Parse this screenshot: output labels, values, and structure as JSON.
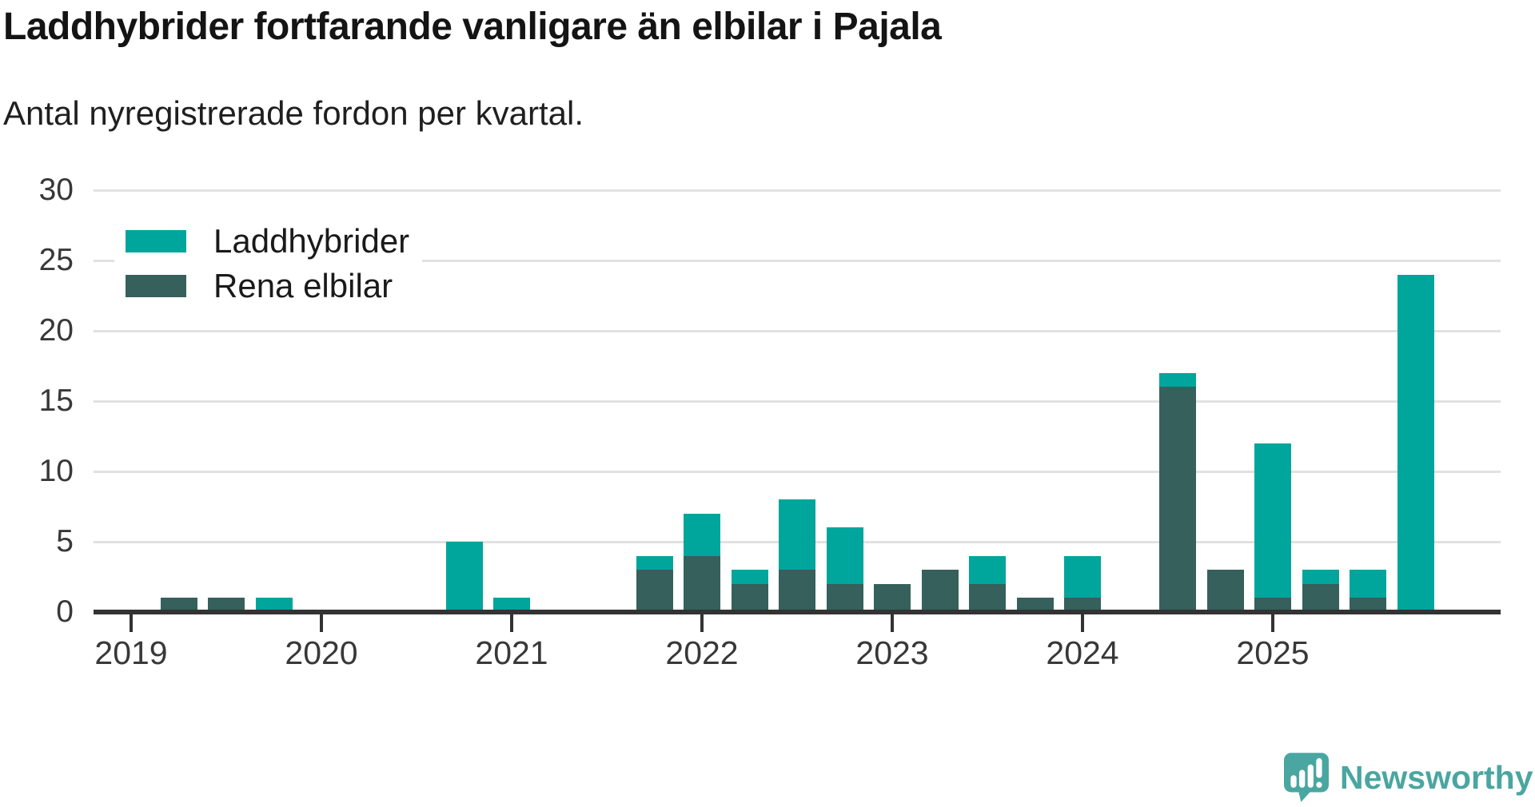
{
  "header": {
    "title": "Laddhybrider fortfarande vanligare än elbilar i Pajala",
    "subtitle": "Antal nyregistrerade fordon per kvartal."
  },
  "legend": {
    "items": [
      {
        "label": "Laddhybrider",
        "color": "#00a59c"
      },
      {
        "label": "Rena elbilar",
        "color": "#36605b"
      }
    ]
  },
  "chart_data": {
    "type": "bar",
    "stacked": true,
    "title": "Laddhybrider fortfarande vanligare än elbilar i Pajala",
    "subtitle": "Antal nyregistrerade fordon per kvartal.",
    "categories": [
      "2019 Q1",
      "2019 Q2",
      "2019 Q3",
      "2019 Q4",
      "2020 Q1",
      "2020 Q2",
      "2020 Q3",
      "2020 Q4",
      "2021 Q1",
      "2021 Q2",
      "2021 Q3",
      "2021 Q4",
      "2022 Q1",
      "2022 Q2",
      "2022 Q3",
      "2022 Q4",
      "2023 Q1",
      "2023 Q2",
      "2023 Q3",
      "2023 Q4",
      "2024 Q1",
      "2024 Q2",
      "2024 Q3",
      "2024 Q4",
      "2025 Q1",
      "2025 Q2",
      "2025 Q3",
      "2025 Q4"
    ],
    "series": [
      {
        "name": "Laddhybrider",
        "color": "#00a59c",
        "values": [
          0,
          0,
          0,
          1,
          0,
          0,
          0,
          5,
          1,
          0,
          0,
          1,
          3,
          1,
          5,
          4,
          0,
          0,
          2,
          0,
          3,
          0,
          1,
          0,
          11,
          1,
          2,
          24
        ]
      },
      {
        "name": "Rena elbilar",
        "color": "#36605b",
        "values": [
          0,
          1,
          1,
          0,
          0,
          0,
          0,
          0,
          0,
          0,
          0,
          3,
          4,
          2,
          3,
          2,
          2,
          3,
          2,
          1,
          1,
          0,
          16,
          3,
          1,
          2,
          1,
          0
        ]
      }
    ],
    "stack_order_bottom_to_top": [
      "Rena elbilar",
      "Laddhybrider"
    ],
    "xlabel": "",
    "ylabel": "",
    "ylim": [
      0,
      30
    ],
    "yticks": [
      0,
      5,
      10,
      15,
      20,
      25,
      30
    ],
    "xtick_labels": [
      "2019",
      "2020",
      "2021",
      "2022",
      "2023",
      "2024",
      "2025"
    ],
    "grid": "horizontal",
    "legend_position": "top-left-inside"
  },
  "branding": {
    "logo_text": "Newsworthy",
    "logo_color": "#4aa6a0",
    "icon": "newsworthy-speech-bubble-bar-chart-icon"
  },
  "colors": {
    "laddhybrider": "#00a59c",
    "rena_elbilar": "#36605b",
    "grid": "#e1e1e1",
    "axis": "#333333",
    "tick_label": "#383838",
    "text": "#1a1a1a"
  }
}
